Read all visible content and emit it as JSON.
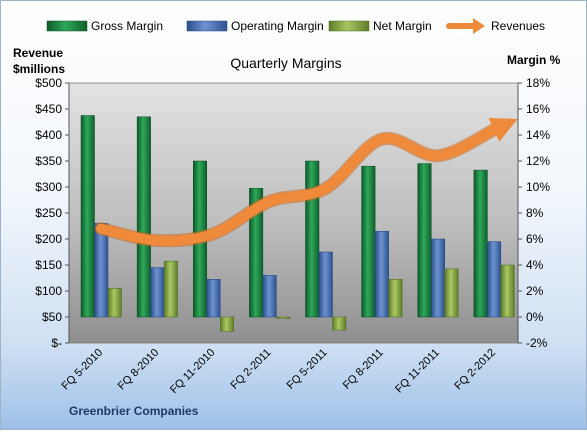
{
  "chart_data": {
    "type": "bar",
    "title": "Quarterly Margins",
    "footer": "Greenbrier Companies",
    "ylabel_left": [
      "Revenue",
      "$millions"
    ],
    "ylabel_right": "Margin %",
    "categories": [
      "FQ 5-2010",
      "FQ 8-2010",
      "FQ 11-2010",
      "FQ 2-2011",
      "FQ 5-2011",
      "FQ 8-2011",
      "FQ 11-2011",
      "FQ 2-2012"
    ],
    "left_axis": {
      "range": [
        0,
        500
      ],
      "ticks": [
        0,
        50,
        100,
        150,
        200,
        250,
        300,
        350,
        400,
        450,
        500
      ],
      "tick_labels": [
        "$-",
        "$50",
        "$100",
        "$150",
        "$200",
        "$250",
        "$300",
        "$350",
        "$400",
        "$450",
        "$500"
      ]
    },
    "right_axis": {
      "range": [
        -2,
        18
      ],
      "ticks": [
        -2,
        0,
        2,
        4,
        6,
        8,
        10,
        12,
        14,
        16,
        18
      ],
      "tick_labels": [
        "-2%",
        "0%",
        "2%",
        "4%",
        "6%",
        "8%",
        "10%",
        "12%",
        "14%",
        "16%",
        "18%"
      ]
    },
    "series": [
      {
        "name": "Gross Margin",
        "kind": "bar",
        "axis": "right",
        "color": "#1e8a45",
        "values": [
          15.5,
          15.4,
          12.0,
          9.9,
          12.0,
          11.6,
          11.8,
          11.3
        ]
      },
      {
        "name": "Operating Margin",
        "kind": "bar",
        "axis": "right",
        "color": "#4a72b5",
        "values": [
          7.2,
          3.8,
          2.9,
          3.2,
          5.0,
          6.6,
          6.0,
          5.8
        ]
      },
      {
        "name": "Net Margin",
        "kind": "bar",
        "axis": "right",
        "color": "#8fae48",
        "values": [
          2.2,
          4.3,
          -1.1,
          -0.1,
          -1.0,
          2.9,
          3.7,
          4.0
        ]
      },
      {
        "name": "Revenues",
        "kind": "arrow",
        "axis": "left",
        "color": "#ef8a3a",
        "values": [
          220,
          197,
          210,
          272,
          297,
          392,
          360,
          410
        ]
      }
    ],
    "legend_position": "top",
    "grid": false
  }
}
